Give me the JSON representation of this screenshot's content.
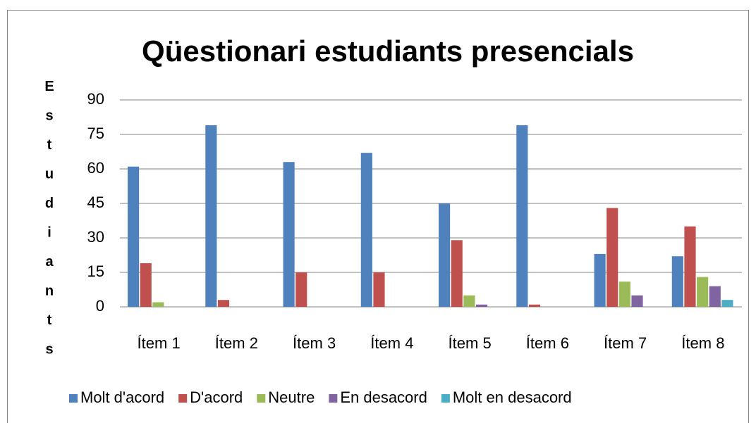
{
  "chart_data": {
    "type": "bar",
    "title": "Qüestionari estudiants presencials",
    "y_label": "Estudiants",
    "categories": [
      "Ítem 1",
      "Ítem 2",
      "Ítem 3",
      "Ítem 4",
      "Ítem 5",
      "Ítem 6",
      "Ítem 7",
      "Ítem 8"
    ],
    "series": [
      {
        "name": "Molt d'acord",
        "color": "#4f81bd",
        "values": [
          61,
          79,
          63,
          67,
          45,
          79,
          23,
          22
        ]
      },
      {
        "name": "D'acord",
        "color": "#c0504d",
        "values": [
          19,
          3,
          15,
          15,
          29,
          1,
          43,
          35
        ]
      },
      {
        "name": "Neutre",
        "color": "#9bbb59",
        "values": [
          2,
          0,
          0,
          0,
          5,
          0,
          11,
          13
        ]
      },
      {
        "name": "En desacord",
        "color": "#8064a2",
        "values": [
          0,
          0,
          0,
          0,
          1,
          0,
          5,
          9
        ]
      },
      {
        "name": "Molt en desacord",
        "color": "#4bacc6",
        "values": [
          0,
          0,
          0,
          0,
          0,
          0,
          0,
          3
        ]
      }
    ],
    "ylim": [
      0,
      90
    ],
    "yticks": [
      0,
      15,
      30,
      45,
      60,
      75,
      90
    ],
    "grid": true,
    "legend": "bottom"
  }
}
